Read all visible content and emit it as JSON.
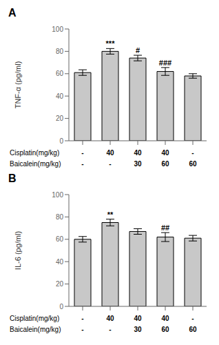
{
  "chart_data": [
    {
      "type": "bar",
      "title": "A",
      "y_label": "TNF-α (pg/ml)",
      "values": [
        61,
        80,
        74,
        62,
        58
      ],
      "errors": [
        2.5,
        2.5,
        2.5,
        3.5,
        2.0
      ],
      "annotations": [
        null,
        "***",
        "#",
        "###",
        null
      ],
      "category_rows": [
        {
          "name": "Cisplatin(mg/kg)",
          "labels": [
            "-",
            "40",
            "40",
            "40",
            "-"
          ]
        },
        {
          "name": "Baicalein(mg/kg)",
          "labels": [
            "-",
            "-",
            "30",
            "60",
            "60"
          ]
        }
      ],
      "color": "#c8c8c8",
      "ylim": [
        0,
        100
      ],
      "yticks": [
        0,
        20,
        40,
        60,
        80,
        100
      ],
      "grid": false
    },
    {
      "type": "bar",
      "title": "B",
      "y_label": "IL-6 (pg/ml)",
      "values": [
        60,
        75,
        67,
        62,
        61
      ],
      "errors": [
        2.5,
        3.0,
        2.5,
        4.0,
        2.5
      ],
      "annotations": [
        null,
        "**",
        null,
        "##",
        null
      ],
      "category_rows": [
        {
          "name": "Cisplatin(mg/kg)",
          "labels": [
            "-",
            "40",
            "40",
            "40",
            "-"
          ]
        },
        {
          "name": "Baicalein(mg/kg)",
          "labels": [
            "-",
            "-",
            "30",
            "60",
            "60"
          ]
        }
      ],
      "color": "#c8c8c8",
      "ylim": [
        0,
        100
      ],
      "yticks": [
        0,
        20,
        40,
        60,
        80,
        100
      ],
      "grid": false
    }
  ]
}
